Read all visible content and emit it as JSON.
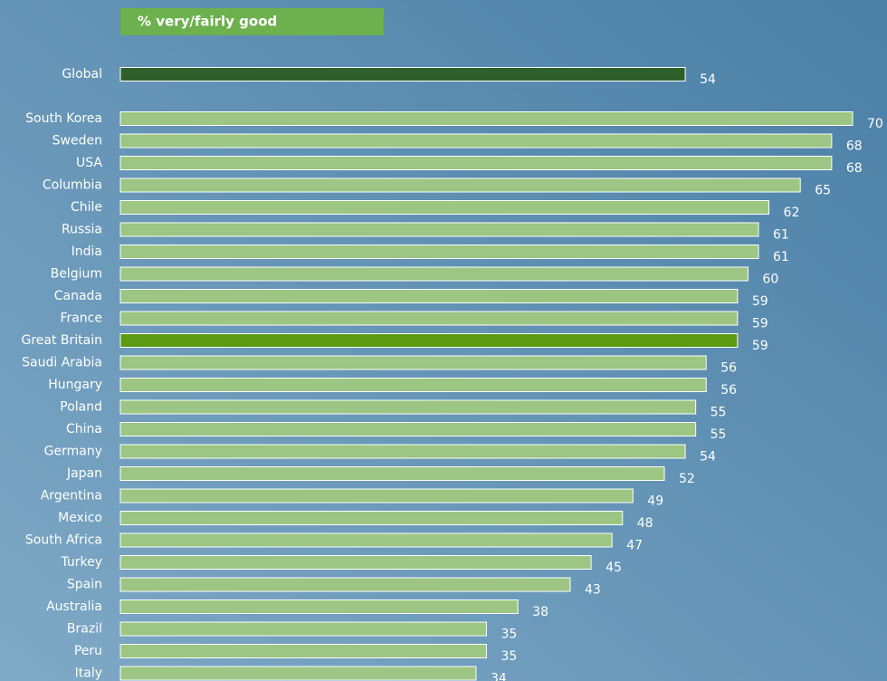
{
  "chart_data": {
    "type": "bar",
    "subtitle": "% very/fairly good",
    "categories": [
      "Global",
      "South Korea",
      "Sweden",
      "USA",
      "Columbia",
      "Chile",
      "Russia",
      "India",
      "Belgium",
      "Canada",
      "France",
      "Great Britain",
      "Saudi Arabia",
      "Hungary",
      "Poland",
      "China",
      "Germany",
      "Japan",
      "Argentina",
      "Mexico",
      "South Africa",
      "Turkey",
      "Spain",
      "Australia",
      "Brazil",
      "Peru",
      "Italy"
    ],
    "values": [
      54,
      70,
      68,
      68,
      65,
      62,
      61,
      61,
      60,
      59,
      59,
      59,
      56,
      56,
      55,
      55,
      54,
      52,
      49,
      48,
      47,
      45,
      43,
      38,
      35,
      35,
      34
    ],
    "colors": [
      "#2f5f2b",
      "#9dc583",
      "#9dc583",
      "#9dc583",
      "#9dc583",
      "#9dc583",
      "#9dc583",
      "#9dc583",
      "#9dc583",
      "#9dc583",
      "#9dc583",
      "#5b9a12",
      "#9dc583",
      "#9dc583",
      "#9dc583",
      "#9dc583",
      "#9dc583",
      "#9dc583",
      "#9dc583",
      "#9dc583",
      "#9dc583",
      "#9dc583",
      "#9dc583",
      "#9dc583",
      "#9dc583",
      "#9dc583",
      "#9dc583"
    ]
  }
}
